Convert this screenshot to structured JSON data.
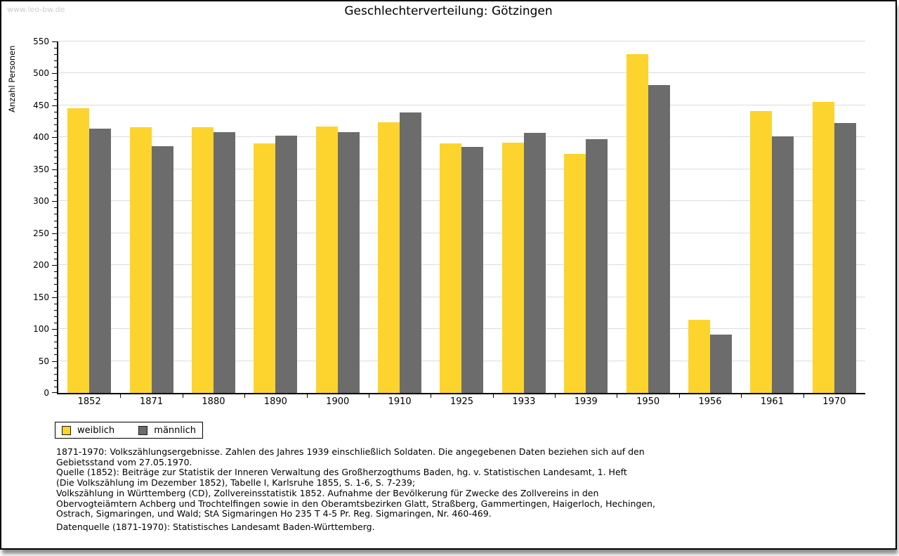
{
  "watermark": "www.leo-bw.de",
  "title": "Geschlechterverteilung: Götzingen",
  "chart_data": {
    "type": "bar",
    "title": "Geschlechterverteilung: Götzingen",
    "xlabel": "",
    "ylabel": "Anzahl Personen",
    "ylim": [
      0,
      550
    ],
    "ytick_step": 50,
    "yticks": [
      0,
      50,
      100,
      150,
      200,
      250,
      300,
      350,
      400,
      450,
      500,
      550
    ],
    "grid": true,
    "legend_position": "bottom-left",
    "categories": [
      "1852",
      "1871",
      "1880",
      "1890",
      "1900",
      "1910",
      "1925",
      "1933",
      "1939",
      "1950",
      "1956",
      "1961",
      "1970"
    ],
    "series": [
      {
        "name": "weiblich",
        "color": "#fcd42d",
        "values": [
          446,
          416,
          416,
          391,
          417,
          423,
          391,
          392,
          374,
          530,
          114,
          441,
          455
        ]
      },
      {
        "name": "männlich",
        "color": "#6c6c6c",
        "values": [
          414,
          386,
          408,
          403,
          408,
          439,
          385,
          407,
          397,
          482,
          91,
          402,
          422
        ]
      }
    ]
  },
  "footer": {
    "lines": [
      "1871-1970: Volkszählungsergebnisse. Zahlen des Jahres 1939 einschließlich Soldaten. Die angegebenen Daten beziehen sich auf den",
      "Gebietsstand vom 27.05.1970.",
      "Quelle (1852): Beiträge zur Statistik der Inneren Verwaltung des Großherzogthums Baden, hg. v. Statistischen Landesamt, 1. Heft",
      "(Die Volkszählung im Dezember 1852), Tabelle I, Karlsruhe 1855, S. 1-6, S. 7-239;",
      "Volkszählung in Württemberg (CD), Zollvereinsstatistik 1852. Aufnahme der Bevölkerung für Zwecke des Zollvereins in den",
      "Obervogteiämtern Achberg und Trochtelfingen sowie in den Oberamtsbezirken Glatt, Straßberg, Gammertingen, Haigerloch, Hechingen,",
      "Ostrach, Sigmaringen, und Wald; StA Sigmaringen Ho 235 T 4-5 Pr. Reg. Sigmaringen, Nr. 460-469."
    ],
    "datenquelle": "Datenquelle (1871-1970): Statistisches Landesamt Baden-Württemberg."
  }
}
